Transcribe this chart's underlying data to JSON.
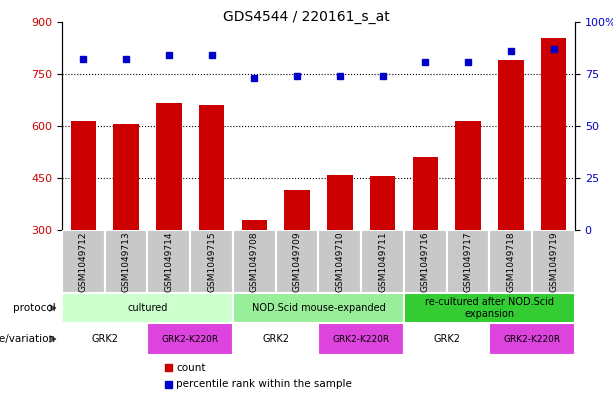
{
  "title": "GDS4544 / 220161_s_at",
  "samples": [
    "GSM1049712",
    "GSM1049713",
    "GSM1049714",
    "GSM1049715",
    "GSM1049708",
    "GSM1049709",
    "GSM1049710",
    "GSM1049711",
    "GSM1049716",
    "GSM1049717",
    "GSM1049718",
    "GSM1049719"
  ],
  "counts": [
    615,
    605,
    665,
    660,
    330,
    415,
    460,
    455,
    510,
    615,
    790,
    855
  ],
  "percentiles": [
    82,
    82,
    84,
    84,
    73,
    74,
    74,
    74,
    81,
    81,
    86,
    87
  ],
  "ylim_left": [
    300,
    900
  ],
  "ylim_right": [
    0,
    100
  ],
  "yticks_left": [
    300,
    450,
    600,
    750,
    900
  ],
  "yticks_right": [
    0,
    25,
    50,
    75,
    100
  ],
  "bar_color": "#cc0000",
  "dot_color": "#0000cc",
  "protocol_groups": [
    {
      "label": "cultured",
      "start": 0,
      "end": 4,
      "color": "#ccffcc"
    },
    {
      "label": "NOD.Scid mouse-expanded",
      "start": 4,
      "end": 8,
      "color": "#99ee99"
    },
    {
      "label": "re-cultured after NOD.Scid\nexpansion",
      "start": 8,
      "end": 12,
      "color": "#33cc33"
    }
  ],
  "genotype_groups": [
    {
      "label": "GRK2",
      "start": 0,
      "end": 2,
      "color": "#ffffff"
    },
    {
      "label": "GRK2-K220R",
      "start": 2,
      "end": 4,
      "color": "#dd44dd"
    },
    {
      "label": "GRK2",
      "start": 4,
      "end": 6,
      "color": "#ffffff"
    },
    {
      "label": "GRK2-K220R",
      "start": 6,
      "end": 8,
      "color": "#dd44dd"
    },
    {
      "label": "GRK2",
      "start": 8,
      "end": 10,
      "color": "#ffffff"
    },
    {
      "label": "GRK2-K220R",
      "start": 10,
      "end": 12,
      "color": "#dd44dd"
    }
  ],
  "grid_lines": [
    450,
    600,
    750
  ],
  "sample_bg": "#c8c8c8",
  "legend_items": [
    {
      "label": "count",
      "color": "#cc0000"
    },
    {
      "label": "percentile rank within the sample",
      "color": "#0000cc"
    }
  ]
}
